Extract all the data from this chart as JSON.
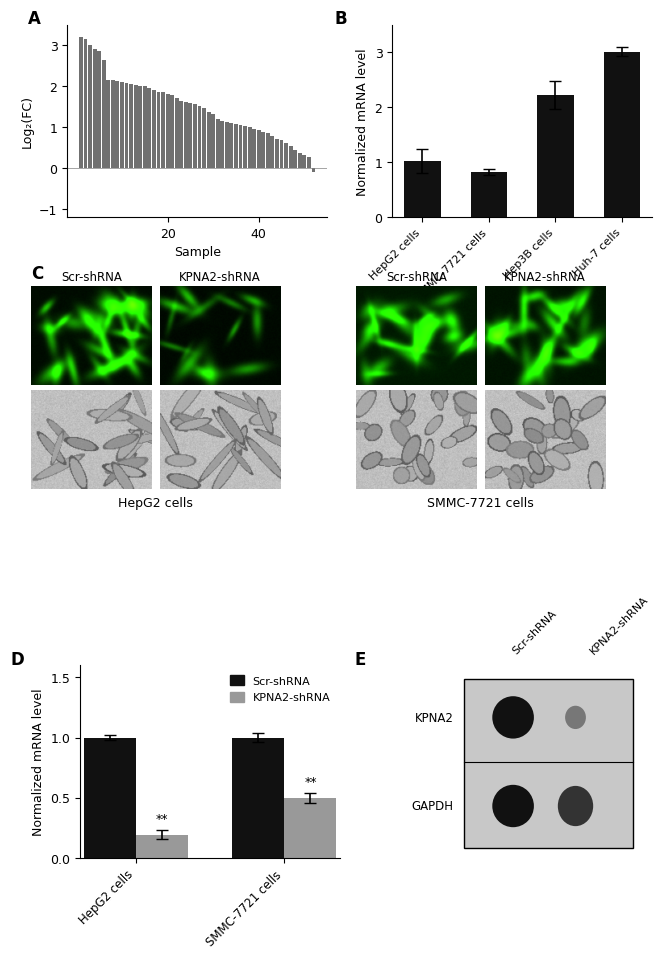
{
  "panel_A": {
    "label": "A",
    "bar_values": [
      3.2,
      3.15,
      3.0,
      2.9,
      2.85,
      2.65,
      2.15,
      2.15,
      2.12,
      2.1,
      2.08,
      2.05,
      2.03,
      2.0,
      2.0,
      1.95,
      1.9,
      1.87,
      1.85,
      1.82,
      1.78,
      1.72,
      1.65,
      1.62,
      1.6,
      1.57,
      1.52,
      1.47,
      1.37,
      1.33,
      1.2,
      1.15,
      1.12,
      1.1,
      1.08,
      1.05,
      1.02,
      1.0,
      0.95,
      0.92,
      0.88,
      0.85,
      0.78,
      0.72,
      0.68,
      0.62,
      0.55,
      0.45,
      0.38,
      0.32,
      0.27,
      -0.1
    ],
    "bar_color": "#707070",
    "xlabel": "Sample",
    "ylabel": "Log₂(FC)",
    "xticks": [
      20,
      40
    ],
    "ylim": [
      -1.2,
      3.5
    ],
    "yticks": [
      -1,
      0,
      1,
      2,
      3
    ]
  },
  "panel_B": {
    "label": "B",
    "categories": [
      "HepG2 cells",
      "SMMC-7721 cells",
      "Hep3B cells",
      "Huh-7 cells"
    ],
    "values": [
      1.03,
      0.82,
      2.22,
      3.01
    ],
    "errors": [
      0.22,
      0.05,
      0.25,
      0.08
    ],
    "bar_color": "#111111",
    "ylabel": "Normalized mRNA level",
    "ylim": [
      0,
      3.5
    ],
    "yticks": [
      0,
      1,
      2,
      3
    ]
  },
  "panel_C": {
    "label": "C",
    "top_labels_left": [
      "Scr-shRNA",
      "KPNA2-shRNA"
    ],
    "top_labels_right": [
      "Scr-shRNA",
      "KPNA2-shRNA"
    ],
    "bottom_labels": [
      "HepG2 cells",
      "SMMC-7721 cells"
    ]
  },
  "panel_D": {
    "label": "D",
    "groups": [
      "HepG2 cells",
      "SMMC-7721 cells"
    ],
    "scr_values": [
      1.0,
      1.0
    ],
    "kpna2_values": [
      0.195,
      0.5
    ],
    "scr_errors": [
      0.02,
      0.04
    ],
    "kpna2_errors": [
      0.04,
      0.04
    ],
    "scr_color": "#111111",
    "kpna2_color": "#999999",
    "ylabel": "Normalized mRNA level",
    "ylim": [
      0,
      1.6
    ],
    "yticks": [
      0.0,
      0.5,
      1.0,
      1.5
    ],
    "legend_labels": [
      "Scr-shRNA",
      "KPNA2-shRNA"
    ],
    "sig_labels": [
      "**",
      "**"
    ]
  },
  "panel_E": {
    "label": "E",
    "bands": [
      "KPNA2",
      "GAPDH"
    ],
    "lane_labels": [
      "Scr-shRNA",
      "KPNA2-shRNA"
    ],
    "blot_bg": "#c8c8c8",
    "band_colors": {
      "KPNA2_scr": "#111111",
      "KPNA2_kpna2": "#777777",
      "GAPDH_scr": "#111111",
      "GAPDH_kpna2": "#333333"
    }
  }
}
